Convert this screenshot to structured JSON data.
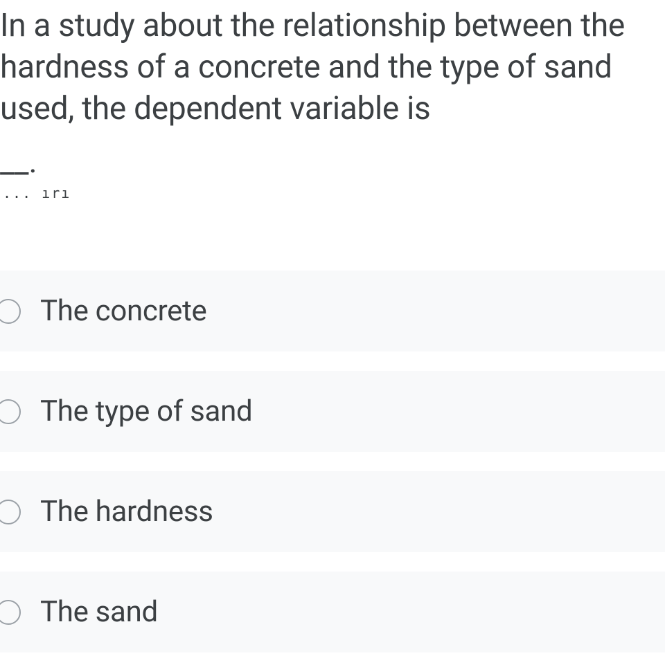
{
  "question": {
    "text": "In a study about the relationship between the hardness of a concrete and the type of sand used, the dependent variable is",
    "blank": "__.",
    "artifact": "... ırı"
  },
  "options": [
    {
      "label": "The concrete"
    },
    {
      "label": "The type of sand"
    },
    {
      "label": "The hardness"
    },
    {
      "label": "The sand"
    }
  ],
  "colors": {
    "text": "#3c4043",
    "option_bg": "#f8f9fa",
    "radio_border": "#9aa0a6",
    "background": "#ffffff"
  }
}
